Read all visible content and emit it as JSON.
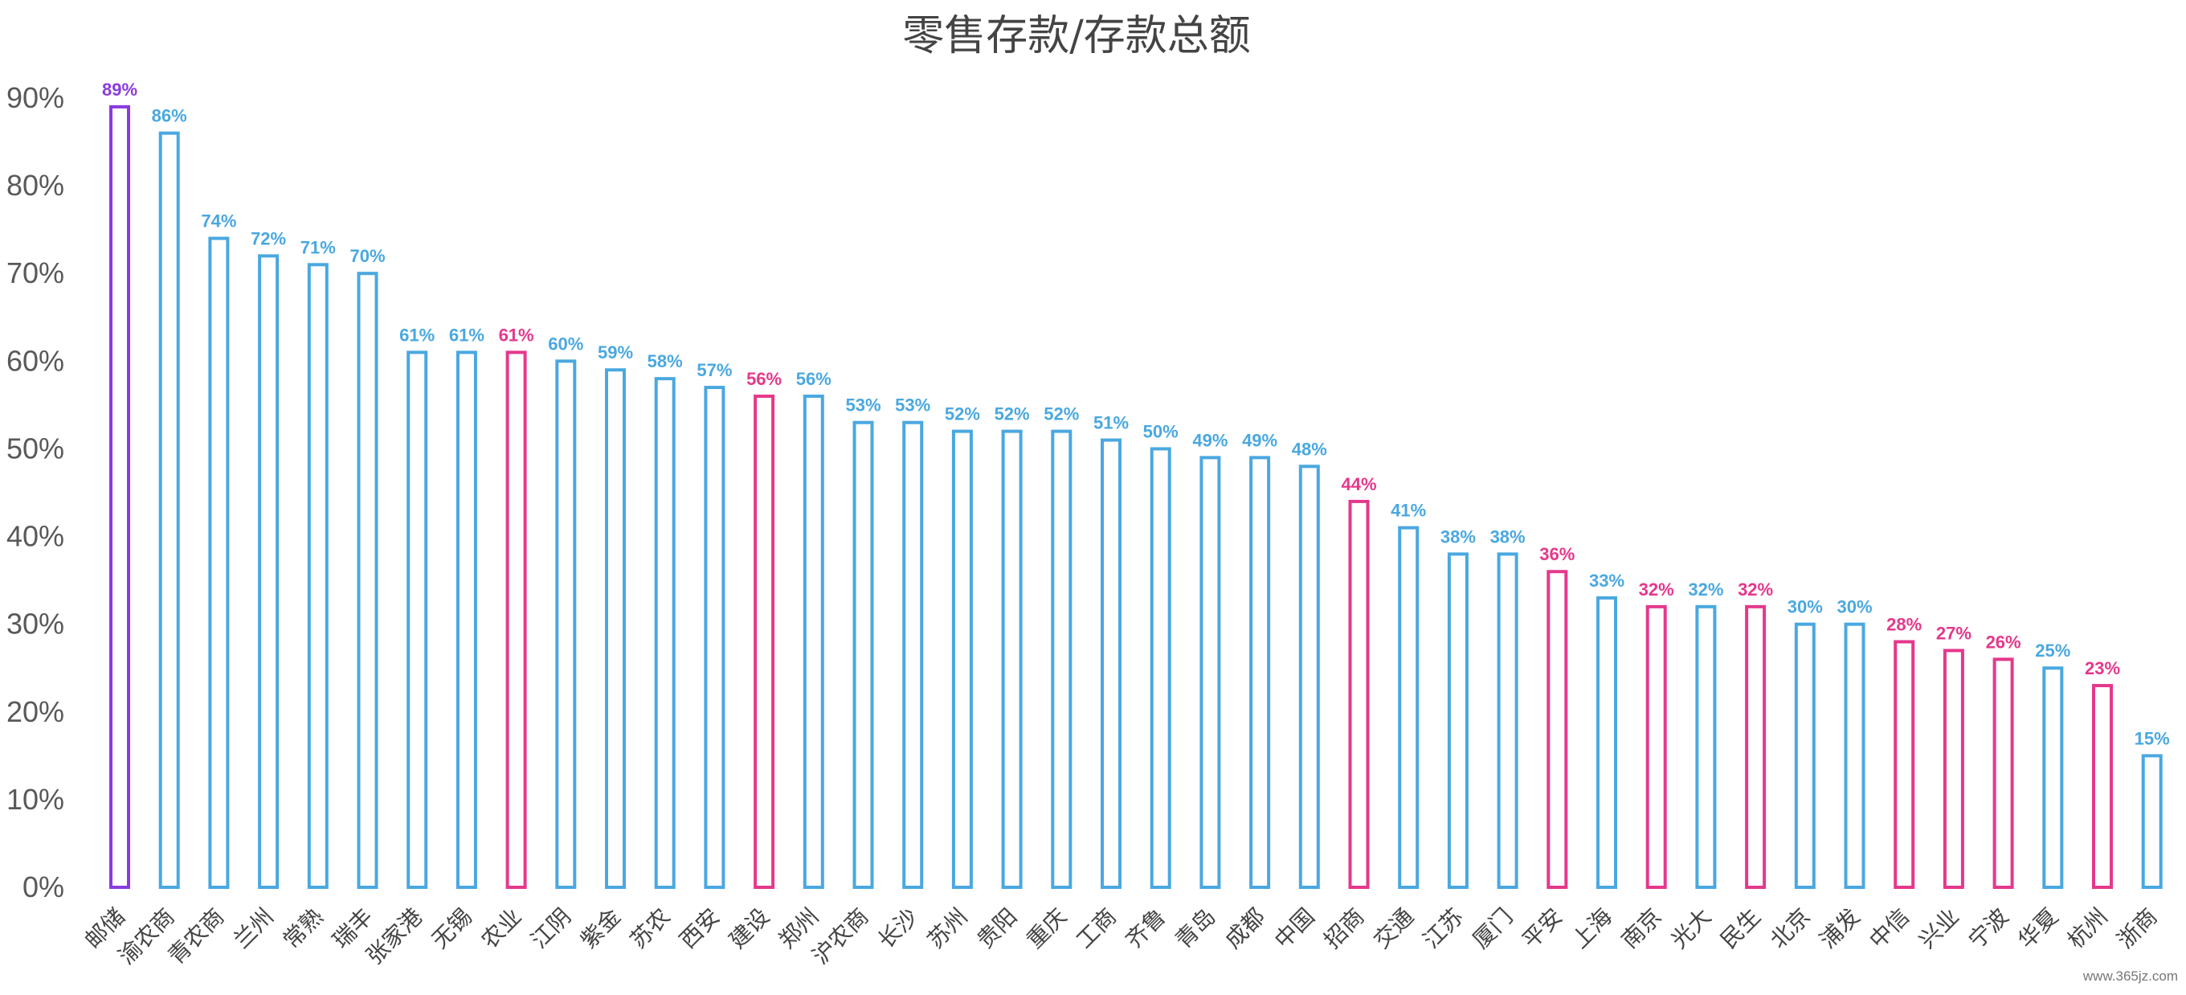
{
  "chart_data": {
    "type": "bar",
    "title": "零售存款/存款总额",
    "xlabel": "",
    "ylabel": "",
    "ylim": [
      0,
      90
    ],
    "y_ticks": [
      "0%",
      "10%",
      "20%",
      "30%",
      "40%",
      "50%",
      "60%",
      "70%",
      "80%",
      "90%"
    ],
    "grid": false,
    "legend": "none",
    "style": "hollow bars (outline only)",
    "categories": [
      "邮储",
      "渝农商",
      "青农商",
      "兰州",
      "常熟",
      "瑞丰",
      "张家港",
      "无锡",
      "农业",
      "江阴",
      "紫金",
      "苏农",
      "西安",
      "建设",
      "郑州",
      "沪农商",
      "长沙",
      "苏州",
      "贵阳",
      "重庆",
      "工商",
      "齐鲁",
      "青岛",
      "成都",
      "中国",
      "招商",
      "交通",
      "江苏",
      "厦门",
      "平安",
      "上海",
      "南京",
      "光大",
      "民生",
      "北京",
      "浦发",
      "中信",
      "兴业",
      "宁波",
      "华夏",
      "杭州",
      "浙商"
    ],
    "values": [
      89,
      86,
      74,
      72,
      71,
      70,
      61,
      61,
      61,
      60,
      59,
      58,
      57,
      56,
      56,
      53,
      53,
      52,
      52,
      52,
      51,
      50,
      49,
      49,
      48,
      44,
      41,
      38,
      38,
      36,
      33,
      32,
      32,
      32,
      30,
      30,
      28,
      27,
      26,
      25,
      23,
      15
    ],
    "labels": [
      "89%",
      "86%",
      "74%",
      "72%",
      "71%",
      "70%",
      "61%",
      "61%",
      "61%",
      "60%",
      "59%",
      "58%",
      "57%",
      "56%",
      "56%",
      "53%",
      "53%",
      "52%",
      "52%",
      "52%",
      "51%",
      "50%",
      "49%",
      "49%",
      "48%",
      "44%",
      "41%",
      "38%",
      "38%",
      "36%",
      "33%",
      "32%",
      "32%",
      "32%",
      "30%",
      "30%",
      "28%",
      "27%",
      "26%",
      "25%",
      "23%",
      "15%"
    ],
    "bar_groups": [
      "highlight",
      "base",
      "base",
      "base",
      "base",
      "base",
      "base",
      "base",
      "major",
      "base",
      "base",
      "base",
      "base",
      "major",
      "base",
      "base",
      "base",
      "base",
      "base",
      "base",
      "base",
      "base",
      "base",
      "base",
      "base",
      "major",
      "base",
      "base",
      "base",
      "major",
      "base",
      "major",
      "base",
      "major",
      "base",
      "base",
      "major",
      "major",
      "major",
      "base",
      "major",
      "base"
    ],
    "colors": {
      "highlight": "#8a3be0",
      "major": "#e5388b",
      "base": "#4aa8e0"
    }
  },
  "watermark": "www.365jz.com"
}
